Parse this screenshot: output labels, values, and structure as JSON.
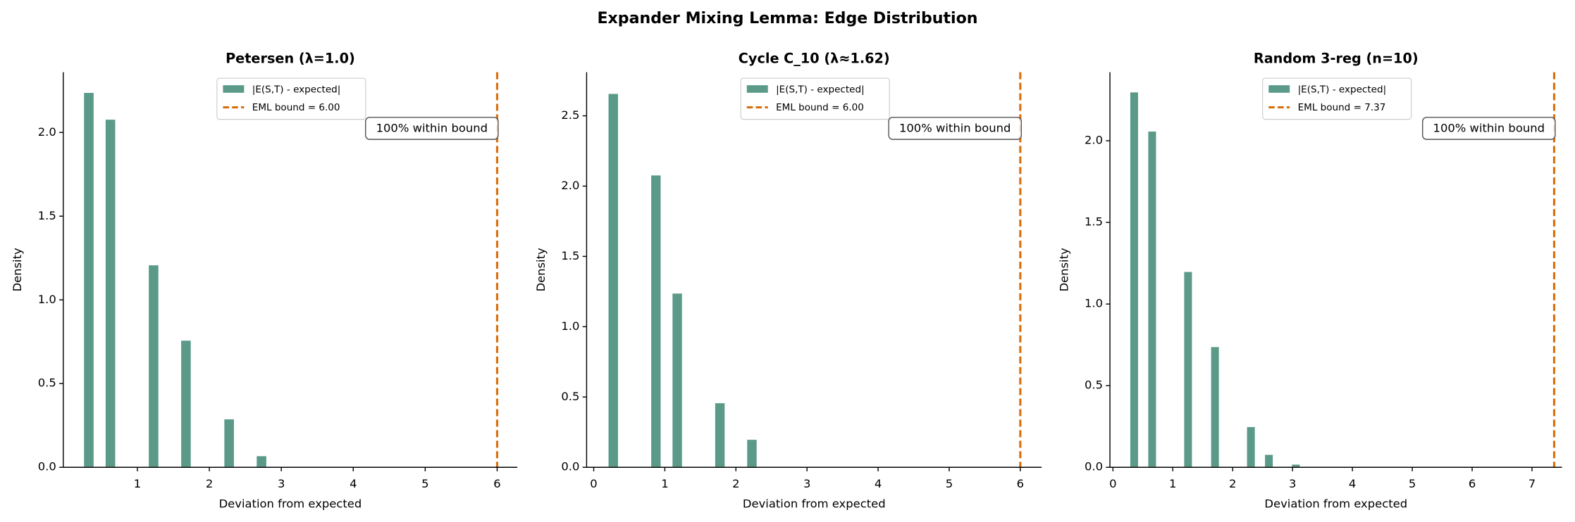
{
  "title": "Expander Mixing Lemma: Edge Distribution",
  "chart_data": [
    {
      "type": "histogram",
      "title": "Petersen (λ=1.0)",
      "xlabel": "Deviation from expected",
      "ylabel": "Density",
      "bins": [
        0.25,
        0.4,
        0.55,
        0.7,
        0.85,
        1.0,
        1.15,
        1.3,
        1.45,
        1.6,
        1.75,
        1.9,
        2.05,
        2.2,
        2.35,
        2.5,
        2.65,
        2.8,
        2.95,
        3.1,
        3.25
      ],
      "series": [
        {
          "name": "|E(S,T) - expected|",
          "color": "#5b9a89",
          "values": [
            2.24,
            0,
            2.08,
            0,
            0,
            0,
            1.21,
            0,
            0,
            0.76,
            0,
            0,
            0,
            0.29,
            0,
            0,
            0.07,
            0,
            0,
            0.005
          ]
        }
      ],
      "vline": {
        "name": "EML bound = 6.00",
        "value": 6.0,
        "color": "#d9700f",
        "style": "dashed"
      },
      "annotation": "100% within bound",
      "legend": "upper center",
      "xlim": [
        -0.03,
        6.28
      ],
      "xticks": [
        1,
        2,
        3,
        4,
        5,
        6
      ],
      "ylim": [
        0,
        2.36
      ],
      "yticks": [
        {
          "value": 0,
          "label": "0.0"
        },
        0.5,
        {
          "value": 1,
          "label": "1.0"
        },
        1.5,
        {
          "value": 2,
          "label": "2.0"
        }
      ]
    },
    {
      "type": "histogram",
      "title": "Cycle C_10 (λ≈1.62)",
      "xlabel": "Deviation from expected",
      "ylabel": "Density",
      "bins": [
        0.2,
        0.35,
        0.5,
        0.65,
        0.8,
        0.95,
        1.1,
        1.25,
        1.4,
        1.55,
        1.7,
        1.85,
        2.0,
        2.15,
        2.3,
        2.45,
        2.6,
        2.75,
        2.9,
        3.05,
        3.2
      ],
      "series": [
        {
          "name": "|E(S,T) - expected|",
          "color": "#5b9a89",
          "values": [
            2.66,
            0,
            0,
            0,
            2.08,
            0,
            1.24,
            0,
            0,
            0,
            0.46,
            0,
            0,
            0.2,
            0,
            0,
            0,
            0,
            0,
            0.005
          ]
        }
      ],
      "vline": {
        "name": "EML bound = 6.00",
        "value": 6.0,
        "color": "#d9700f",
        "style": "dashed"
      },
      "annotation": "100% within bound",
      "legend": "upper center",
      "xlim": [
        -0.1,
        6.3
      ],
      "xticks": [
        0,
        1,
        2,
        3,
        4,
        5,
        6
      ],
      "ylim": [
        0,
        2.81
      ],
      "yticks": [
        {
          "value": 0,
          "label": "0.0"
        },
        0.5,
        {
          "value": 1,
          "label": "1.0"
        },
        1.5,
        {
          "value": 2,
          "label": "2.0"
        },
        2.5
      ]
    },
    {
      "type": "histogram",
      "title": "Random 3-reg (n=10)",
      "xlabel": "Deviation from expected",
      "ylabel": "Density",
      "bins": [
        0.28,
        0.43,
        0.58,
        0.73,
        0.88,
        1.03,
        1.18,
        1.33,
        1.48,
        1.63,
        1.78,
        1.93,
        2.08,
        2.23,
        2.38,
        2.53,
        2.68,
        2.83,
        2.98,
        3.13,
        3.28
      ],
      "series": [
        {
          "name": "|E(S,T) - expected|",
          "color": "#5b9a89",
          "values": [
            2.3,
            0,
            2.06,
            0,
            0,
            0,
            1.2,
            0,
            0,
            0.74,
            0,
            0,
            0,
            0.25,
            0,
            0.08,
            0,
            0,
            0.02,
            0
          ]
        }
      ],
      "vline": {
        "name": "EML bound = 7.37",
        "value": 7.37,
        "color": "#d9700f",
        "style": "dashed"
      },
      "annotation": "100% within bound",
      "legend": "upper center",
      "xlim": [
        -0.05,
        7.5
      ],
      "xticks": [
        0,
        1,
        2,
        3,
        4,
        5,
        6,
        7
      ],
      "ylim": [
        0,
        2.42
      ],
      "yticks": [
        {
          "value": 0,
          "label": "0.0"
        },
        0.5,
        {
          "value": 1,
          "label": "1.0"
        },
        1.5,
        {
          "value": 2,
          "label": "2.0"
        }
      ]
    }
  ]
}
